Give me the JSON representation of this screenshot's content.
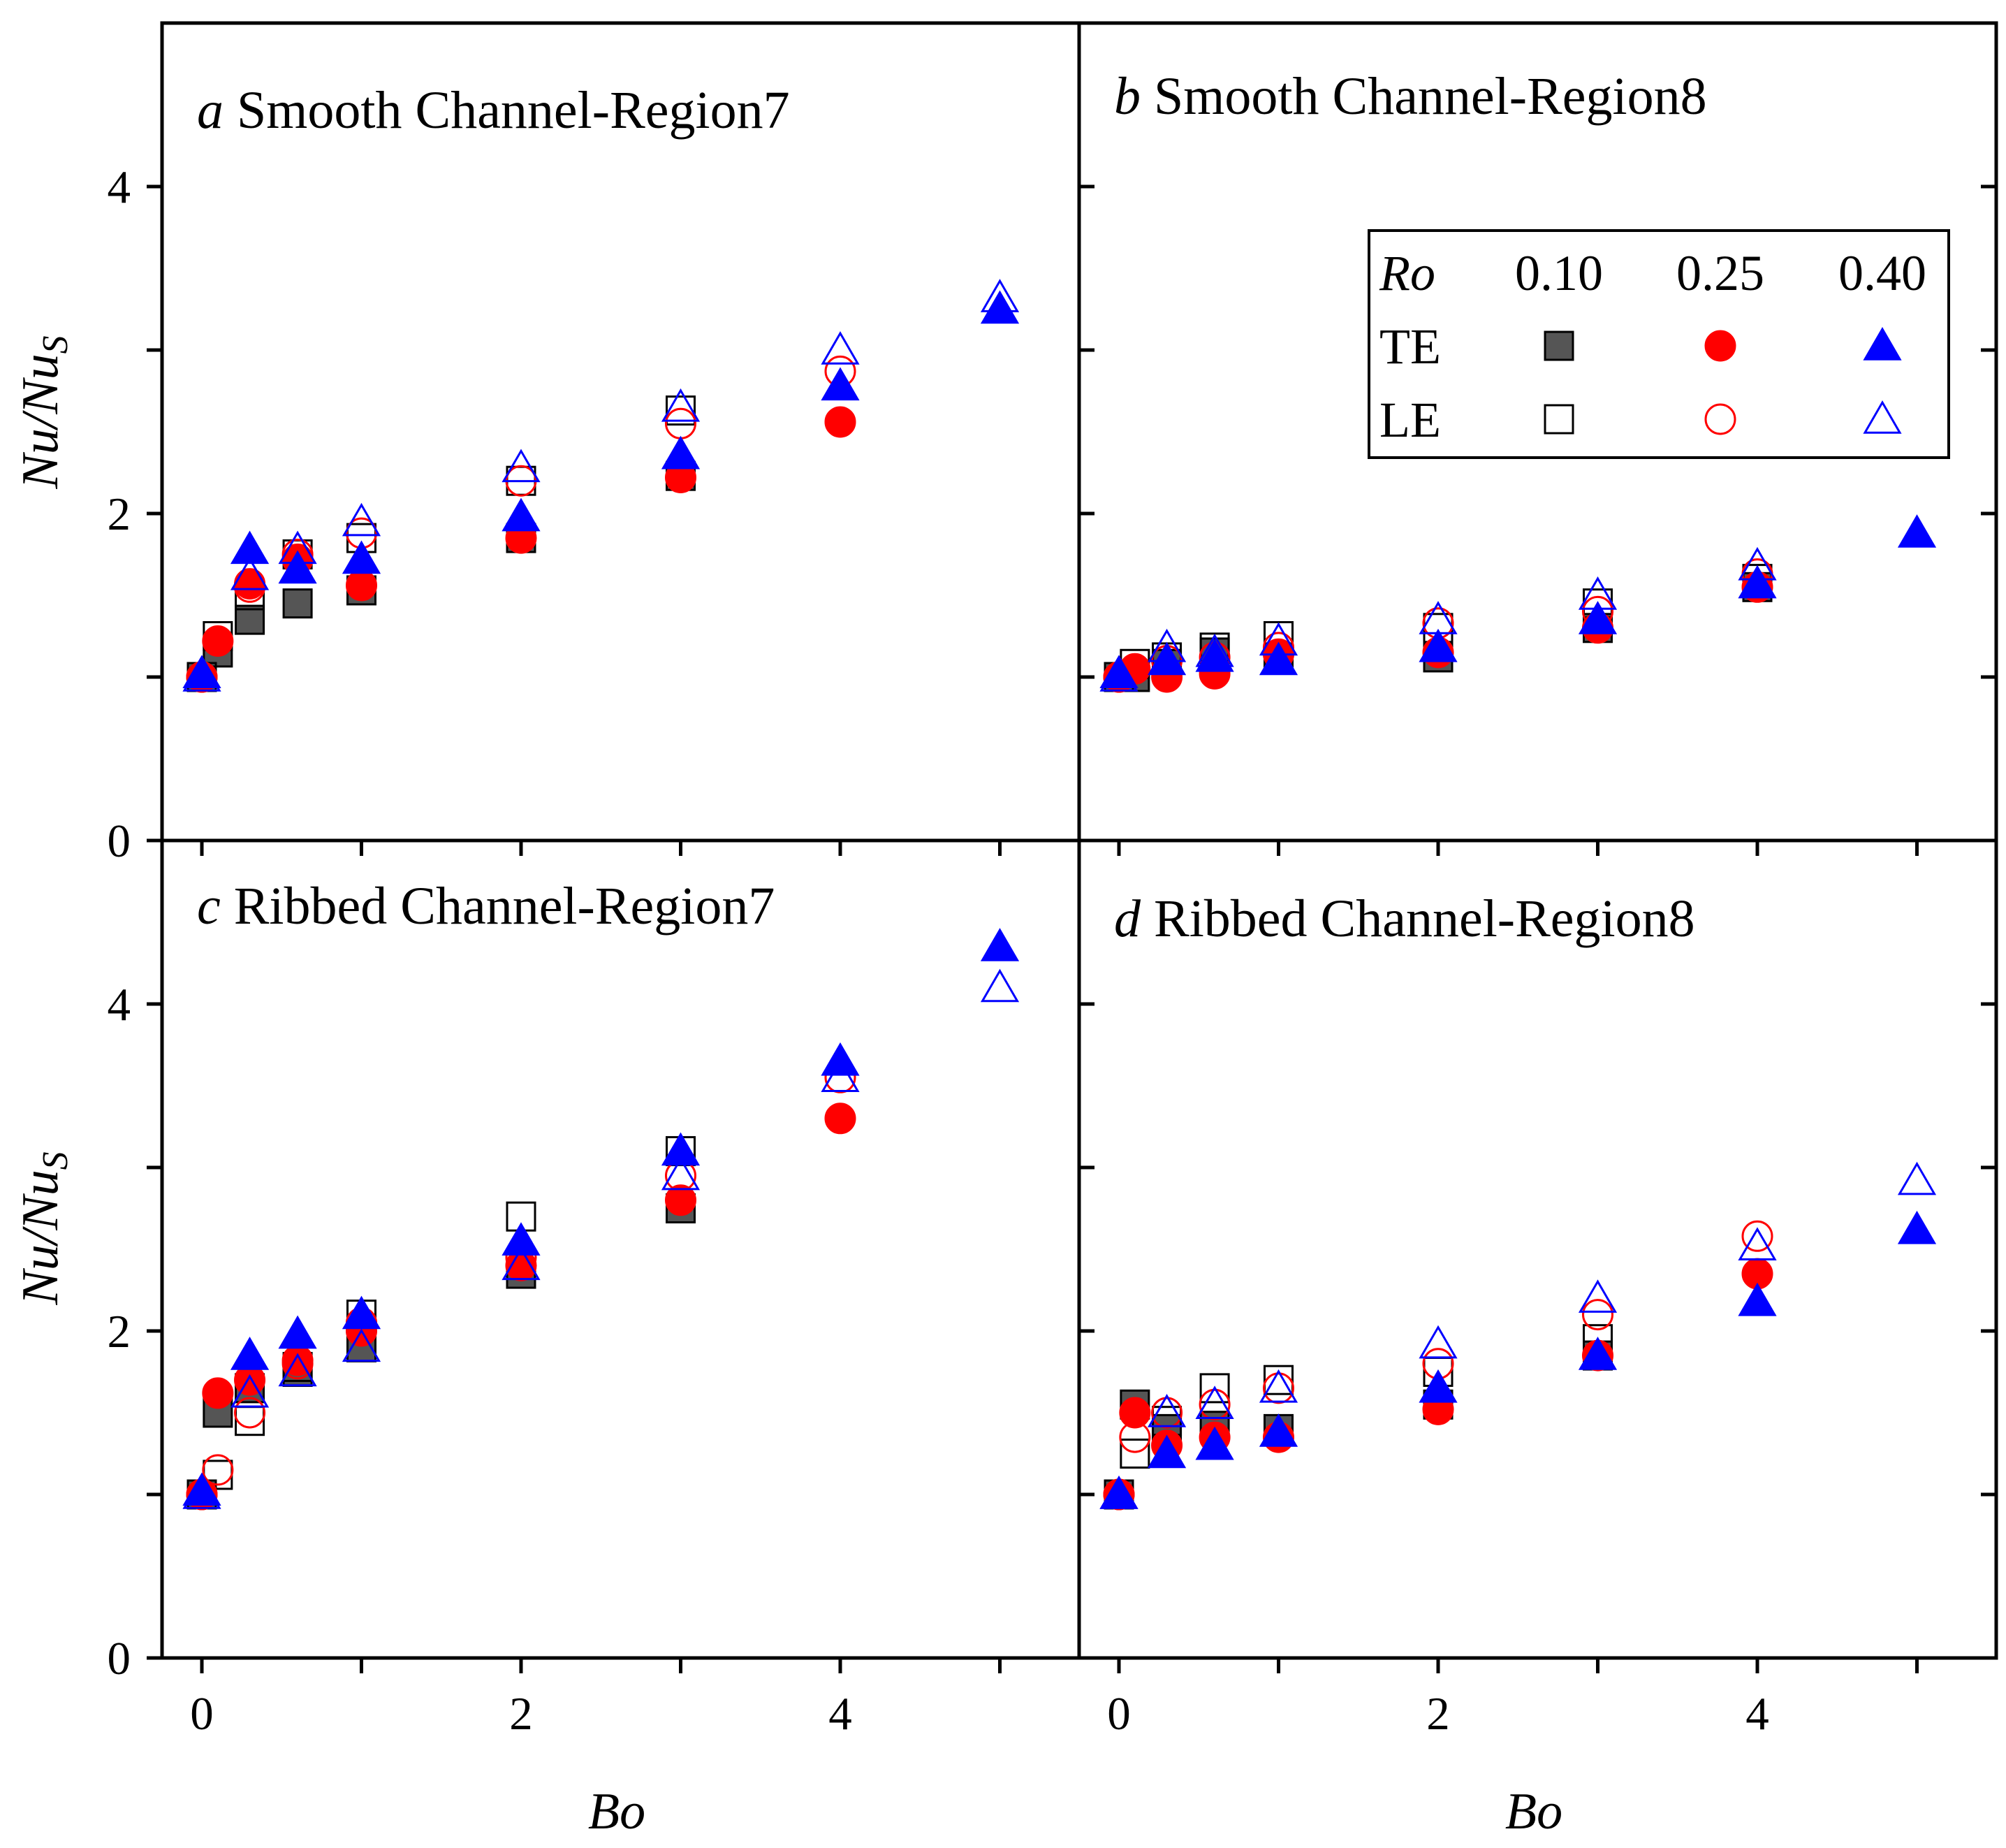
{
  "colors": {
    "te_square": "#555555",
    "stroke_square": "#000000",
    "red": "#ff0000",
    "blue": "#0000ff"
  },
  "axes": {
    "xlabel": "Bo",
    "ylabel_main": "Nu/Nu",
    "ylabel_sub": "S",
    "x_ticks": [
      "0",
      "2",
      "4"
    ],
    "y_ticks": [
      "0",
      "2",
      "4"
    ]
  },
  "legend": {
    "header": "Ro",
    "columns": [
      "0.10",
      "0.25",
      "0.40"
    ],
    "rows": [
      "TE",
      "LE"
    ]
  },
  "chart_data": [
    {
      "type": "scatter",
      "panel": "a",
      "title_letter": "a",
      "title_text": " Smooth Channel-Region7",
      "xlabel": "Bo",
      "ylabel": "Nu/NuS",
      "xlim": [
        -0.25,
        5.5
      ],
      "ylim": [
        0,
        5
      ],
      "series": [
        {
          "name": "TE Ro=0.10",
          "x": [
            0,
            0.1,
            0.3,
            0.6,
            1,
            2,
            3
          ],
          "y": [
            1.0,
            1.15,
            1.35,
            1.45,
            1.53,
            1.85,
            2.23
          ]
        },
        {
          "name": "LE Ro=0.10",
          "x": [
            0,
            0.1,
            0.3,
            0.6,
            1,
            2,
            3
          ],
          "y": [
            1.0,
            1.25,
            1.5,
            1.75,
            1.85,
            2.2,
            2.63
          ]
        },
        {
          "name": "TE Ro=0.25",
          "x": [
            0,
            0.1,
            0.3,
            0.6,
            1,
            2,
            3,
            4
          ],
          "y": [
            1.0,
            1.22,
            1.57,
            1.72,
            1.56,
            1.85,
            2.22,
            2.56
          ]
        },
        {
          "name": "LE Ro=0.25",
          "x": [
            0,
            0.3,
            0.6,
            1,
            2,
            3,
            4
          ],
          "y": [
            1.0,
            1.55,
            1.75,
            1.88,
            2.2,
            2.55,
            2.87
          ]
        },
        {
          "name": "TE Ro=0.40",
          "x": [
            0,
            0.3,
            0.6,
            1,
            2,
            3,
            4,
            5
          ],
          "y": [
            1.02,
            1.78,
            1.66,
            1.72,
            1.98,
            2.36,
            2.78,
            3.25
          ]
        },
        {
          "name": "LE Ro=0.40",
          "x": [
            0,
            0.3,
            0.6,
            1,
            2,
            3,
            4,
            5
          ],
          "y": [
            1.0,
            1.62,
            1.78,
            1.95,
            2.28,
            2.65,
            3.0,
            3.32
          ]
        }
      ]
    },
    {
      "type": "scatter",
      "panel": "b",
      "title_letter": "b",
      "title_text": " Smooth Channel-Region8",
      "xlabel": "Bo",
      "ylabel": "Nu/NuS",
      "xlim": [
        -0.25,
        5.5
      ],
      "ylim": [
        0,
        5
      ],
      "series": [
        {
          "name": "TE Ro=0.10",
          "x": [
            0,
            0.1,
            0.3,
            0.6,
            1,
            2,
            3,
            4
          ],
          "y": [
            1.0,
            1.0,
            1.08,
            1.15,
            1.12,
            1.12,
            1.3,
            1.55
          ]
        },
        {
          "name": "LE Ro=0.10",
          "x": [
            0,
            0.1,
            0.3,
            0.6,
            1,
            2,
            3,
            4
          ],
          "y": [
            1.0,
            1.08,
            1.12,
            1.18,
            1.25,
            1.3,
            1.45,
            1.6
          ]
        },
        {
          "name": "TE Ro=0.25",
          "x": [
            0,
            0.1,
            0.3,
            0.6,
            1,
            2,
            3,
            4
          ],
          "y": [
            1.0,
            1.05,
            1.0,
            1.02,
            1.14,
            1.15,
            1.3,
            1.55
          ]
        },
        {
          "name": "LE Ro=0.25",
          "x": [
            0,
            0.3,
            0.6,
            1,
            2,
            3,
            4
          ],
          "y": [
            1.0,
            1.1,
            1.12,
            1.18,
            1.33,
            1.4,
            1.63
          ]
        },
        {
          "name": "TE Ro=0.40",
          "x": [
            0,
            0.3,
            0.6,
            1,
            2,
            3,
            4,
            5
          ],
          "y": [
            1.02,
            1.1,
            1.12,
            1.1,
            1.18,
            1.35,
            1.57,
            1.88
          ]
        },
        {
          "name": "LE Ro=0.40",
          "x": [
            0,
            0.3,
            0.6,
            1,
            2,
            3,
            4
          ],
          "y": [
            1.0,
            1.18,
            1.15,
            1.22,
            1.35,
            1.5,
            1.68
          ]
        }
      ]
    },
    {
      "type": "scatter",
      "panel": "c",
      "title_letter": "c",
      "title_text": " Ribbed Channel-Region7",
      "xlabel": "Bo",
      "ylabel": "Nu/NuS",
      "xlim": [
        -0.25,
        5.5
      ],
      "ylim": [
        0,
        5
      ],
      "series": [
        {
          "name": "TE Ro=0.10",
          "x": [
            0,
            0.1,
            0.3,
            0.6,
            1,
            2,
            3
          ],
          "y": [
            1.0,
            1.5,
            1.65,
            1.75,
            1.9,
            2.35,
            2.75
          ]
        },
        {
          "name": "LE Ro=0.10",
          "x": [
            0,
            0.1,
            0.3,
            0.6,
            1,
            2,
            3
          ],
          "y": [
            1.0,
            1.12,
            1.45,
            1.78,
            2.1,
            2.7,
            3.1
          ]
        },
        {
          "name": "TE Ro=0.25",
          "x": [
            0,
            0.1,
            0.3,
            0.6,
            1,
            2,
            3,
            4
          ],
          "y": [
            1.0,
            1.62,
            1.7,
            1.82,
            2.0,
            2.4,
            2.8,
            3.3
          ]
        },
        {
          "name": "LE Ro=0.25",
          "x": [
            0,
            0.1,
            0.3,
            0.6,
            1,
            2,
            3,
            4
          ],
          "y": [
            1.0,
            1.15,
            1.5,
            1.8,
            2.05,
            2.45,
            2.95,
            3.55
          ]
        },
        {
          "name": "TE Ro=0.40",
          "x": [
            0,
            0.3,
            0.6,
            1,
            2,
            3,
            4,
            5
          ],
          "y": [
            1.02,
            1.85,
            1.98,
            2.1,
            2.55,
            3.1,
            3.65,
            4.35
          ]
        },
        {
          "name": "LE Ro=0.40",
          "x": [
            0,
            0.3,
            0.6,
            1,
            2,
            3,
            4,
            5
          ],
          "y": [
            1.0,
            1.62,
            1.75,
            1.9,
            2.4,
            2.95,
            3.55,
            4.1
          ]
        }
      ]
    },
    {
      "type": "scatter",
      "panel": "d",
      "title_letter": "d",
      "title_text": " Ribbed Channel-Region8",
      "xlabel": "Bo",
      "ylabel": "Nu/NuS",
      "xlim": [
        -0.25,
        5.5
      ],
      "ylim": [
        0,
        5
      ],
      "series": [
        {
          "name": "TE Ro=0.10",
          "x": [
            0,
            0.1,
            0.3,
            0.6,
            1,
            2,
            3
          ],
          "y": [
            1.0,
            1.55,
            1.4,
            1.42,
            1.4,
            1.55,
            1.85
          ]
        },
        {
          "name": "LE Ro=0.10",
          "x": [
            0,
            0.1,
            0.3,
            0.6,
            1,
            2,
            3
          ],
          "y": [
            1.0,
            1.25,
            1.45,
            1.65,
            1.7,
            1.75,
            1.95
          ]
        },
        {
          "name": "TE Ro=0.25",
          "x": [
            0,
            0.1,
            0.3,
            0.6,
            1,
            2,
            3,
            4
          ],
          "y": [
            1.0,
            1.5,
            1.3,
            1.35,
            1.35,
            1.52,
            1.85,
            2.35
          ]
        },
        {
          "name": "LE Ro=0.25",
          "x": [
            0,
            0.1,
            0.3,
            0.6,
            1,
            2,
            3,
            4
          ],
          "y": [
            1.0,
            1.35,
            1.5,
            1.55,
            1.65,
            1.8,
            2.1,
            2.58
          ]
        },
        {
          "name": "TE Ro=0.40",
          "x": [
            0,
            0.3,
            0.6,
            1,
            2,
            3,
            4,
            5
          ],
          "y": [
            1.0,
            1.25,
            1.3,
            1.38,
            1.65,
            1.85,
            2.18,
            2.62
          ]
        },
        {
          "name": "LE Ro=0.40",
          "x": [
            0,
            0.3,
            0.6,
            1,
            2,
            3,
            4,
            5
          ],
          "y": [
            1.0,
            1.5,
            1.55,
            1.65,
            1.92,
            2.2,
            2.52,
            2.92
          ]
        }
      ]
    }
  ]
}
